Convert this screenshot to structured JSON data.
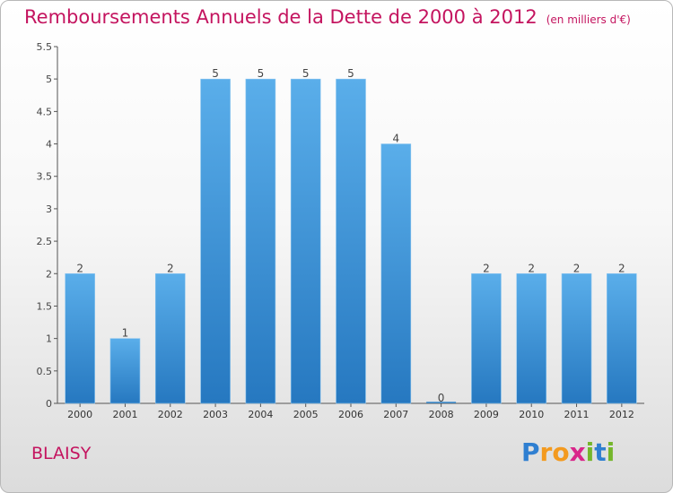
{
  "header": {
    "title": "Remboursements Annuels de la Dette de 2000 à 2012",
    "subtitle": "(en milliers d'€)"
  },
  "footer": {
    "place": "BLAISY",
    "brand": "Proxiti"
  },
  "colors": {
    "title": "#c4145f",
    "bar_top": "#5aaeea",
    "bar_bottom": "#2678c0"
  },
  "chart_data": {
    "type": "bar",
    "title": "Remboursements Annuels de la Dette de 2000 à 2012",
    "subtitle": "(en milliers d'€)",
    "categories": [
      "2000",
      "2001",
      "2002",
      "2003",
      "2004",
      "2005",
      "2006",
      "2007",
      "2008",
      "2009",
      "2010",
      "2011",
      "2012"
    ],
    "values": [
      2,
      1,
      2,
      5,
      5,
      5,
      5,
      4,
      0,
      2,
      2,
      2,
      2
    ],
    "ylim": [
      0,
      5.5
    ],
    "yticks": [
      "0",
      "0.5",
      "1",
      "1.5",
      "2",
      "2.5",
      "3",
      "3.5",
      "4",
      "4.5",
      "5",
      "5.5"
    ],
    "grid": false,
    "legend": "none"
  }
}
